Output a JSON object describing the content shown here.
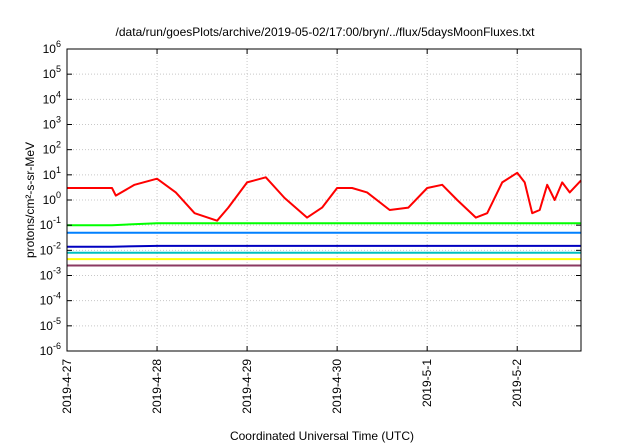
{
  "chart_data": {
    "type": "line",
    "title": "/data/run/goesPlots/archive/2019-05-02/17:00/bryn/../flux/5daysMoonFluxes.txt",
    "xlabel": "Coordinated Universal Time (UTC)",
    "ylabel": "protons/cm²-s-sr-MeV",
    "yscale": "log",
    "ylim": [
      1e-06,
      1000000.0
    ],
    "y_ticks": [
      {
        "value": 1e-06,
        "base": "10",
        "exp": "-6"
      },
      {
        "value": 1e-05,
        "base": "10",
        "exp": "-5"
      },
      {
        "value": 0.0001,
        "base": "10",
        "exp": "-4"
      },
      {
        "value": 0.001,
        "base": "10",
        "exp": "-3"
      },
      {
        "value": 0.01,
        "base": "10",
        "exp": "-2"
      },
      {
        "value": 0.1,
        "base": "10",
        "exp": "-1"
      },
      {
        "value": 1,
        "base": "10",
        "exp": "0"
      },
      {
        "value": 10,
        "base": "10",
        "exp": "1"
      },
      {
        "value": 100,
        "base": "10",
        "exp": "2"
      },
      {
        "value": 1000,
        "base": "10",
        "exp": "3"
      },
      {
        "value": 10000,
        "base": "10",
        "exp": "4"
      },
      {
        "value": 100000,
        "base": "10",
        "exp": "5"
      },
      {
        "value": 1000000,
        "base": "10",
        "exp": "6"
      }
    ],
    "x_ticks": [
      "2019-4-27",
      "2019-4-28",
      "2019-4-29",
      "2019-4-30",
      "2019-5-1",
      "2019-5-2"
    ],
    "xlim": [
      "2019-4-27 00:00",
      "2019-5-2 17:00"
    ],
    "grid": true,
    "series": [
      {
        "color": "#ff0000",
        "x": [
          "2019-4-27 00:00",
          "2019-4-27 12:00",
          "2019-4-27 13:00",
          "2019-4-27 18:00",
          "2019-4-28 00:00",
          "2019-4-28 05:00",
          "2019-4-28 10:00",
          "2019-4-28 16:00",
          "2019-4-28 19:00",
          "2019-4-29 00:00",
          "2019-4-29 05:00",
          "2019-4-29 10:00",
          "2019-4-29 16:00",
          "2019-4-29 20:00",
          "2019-4-30 00:00",
          "2019-4-30 04:00",
          "2019-4-30 08:00",
          "2019-4-30 14:00",
          "2019-4-30 19:00",
          "2019-5-1 00:00",
          "2019-5-1 04:00",
          "2019-5-1 08:00",
          "2019-5-1 13:00",
          "2019-5-1 16:00",
          "2019-5-1 20:00",
          "2019-5-2 00:00",
          "2019-5-2 02:00",
          "2019-5-2 04:00",
          "2019-5-2 06:00",
          "2019-5-2 08:00",
          "2019-5-2 10:00",
          "2019-5-2 12:00",
          "2019-5-2 14:00",
          "2019-5-2 17:00"
        ],
        "values": [
          3,
          3,
          1.5,
          4,
          7,
          2,
          0.3,
          0.15,
          0.5,
          5,
          8,
          1.2,
          0.2,
          0.5,
          3,
          3,
          2,
          0.4,
          0.5,
          3,
          4,
          1,
          0.2,
          0.3,
          5,
          12,
          5,
          0.3,
          0.4,
          4,
          1,
          5,
          2,
          6
        ]
      },
      {
        "color": "#00ff00",
        "x": [
          "2019-4-27 00:00",
          "2019-4-27 12:00",
          "2019-4-28 00:00",
          "2019-4-29 00:00",
          "2019-4-30 00:00",
          "2019-5-1 00:00",
          "2019-5-2 00:00",
          "2019-5-2 17:00"
        ],
        "values": [
          0.1,
          0.1,
          0.12,
          0.12,
          0.12,
          0.12,
          0.12,
          0.12
        ]
      },
      {
        "color": "#0080ff",
        "x": [
          "2019-4-27 00:00",
          "2019-4-27 12:00",
          "2019-4-28 00:00",
          "2019-4-29 00:00",
          "2019-4-30 00:00",
          "2019-5-1 00:00",
          "2019-5-2 00:00",
          "2019-5-2 17:00"
        ],
        "values": [
          0.05,
          0.05,
          0.05,
          0.05,
          0.05,
          0.05,
          0.05,
          0.05
        ]
      },
      {
        "color": "#0000c0",
        "x": [
          "2019-4-27 00:00",
          "2019-4-27 12:00",
          "2019-4-28 00:00",
          "2019-4-29 00:00",
          "2019-4-30 00:00",
          "2019-5-1 00:00",
          "2019-5-2 00:00",
          "2019-5-2 17:00"
        ],
        "values": [
          0.014,
          0.014,
          0.015,
          0.015,
          0.015,
          0.015,
          0.015,
          0.015
        ]
      },
      {
        "color": "#00c0c0",
        "x": [
          "2019-4-27 00:00",
          "2019-4-27 12:00",
          "2019-4-28 00:00",
          "2019-4-29 00:00",
          "2019-4-30 00:00",
          "2019-5-1 00:00",
          "2019-5-2 00:00",
          "2019-5-2 17:00"
        ],
        "values": [
          0.008,
          0.008,
          0.008,
          0.008,
          0.008,
          0.008,
          0.008,
          0.008
        ]
      },
      {
        "color": "#ffff00",
        "x": [
          "2019-4-27 00:00",
          "2019-4-27 12:00",
          "2019-4-28 00:00",
          "2019-4-29 00:00",
          "2019-4-30 00:00",
          "2019-5-1 00:00",
          "2019-5-2 00:00",
          "2019-5-2 17:00"
        ],
        "values": [
          0.0045,
          0.0045,
          0.0045,
          0.0045,
          0.0045,
          0.0045,
          0.0045,
          0.0045
        ]
      },
      {
        "color": "#8b3a62",
        "x": [
          "2019-4-27 00:00",
          "2019-4-27 12:00",
          "2019-4-28 00:00",
          "2019-4-29 00:00",
          "2019-4-30 00:00",
          "2019-5-1 00:00",
          "2019-5-2 00:00",
          "2019-5-2 17:00"
        ],
        "values": [
          0.0025,
          0.0025,
          0.0025,
          0.0025,
          0.0025,
          0.0025,
          0.0025,
          0.0025
        ]
      }
    ]
  }
}
